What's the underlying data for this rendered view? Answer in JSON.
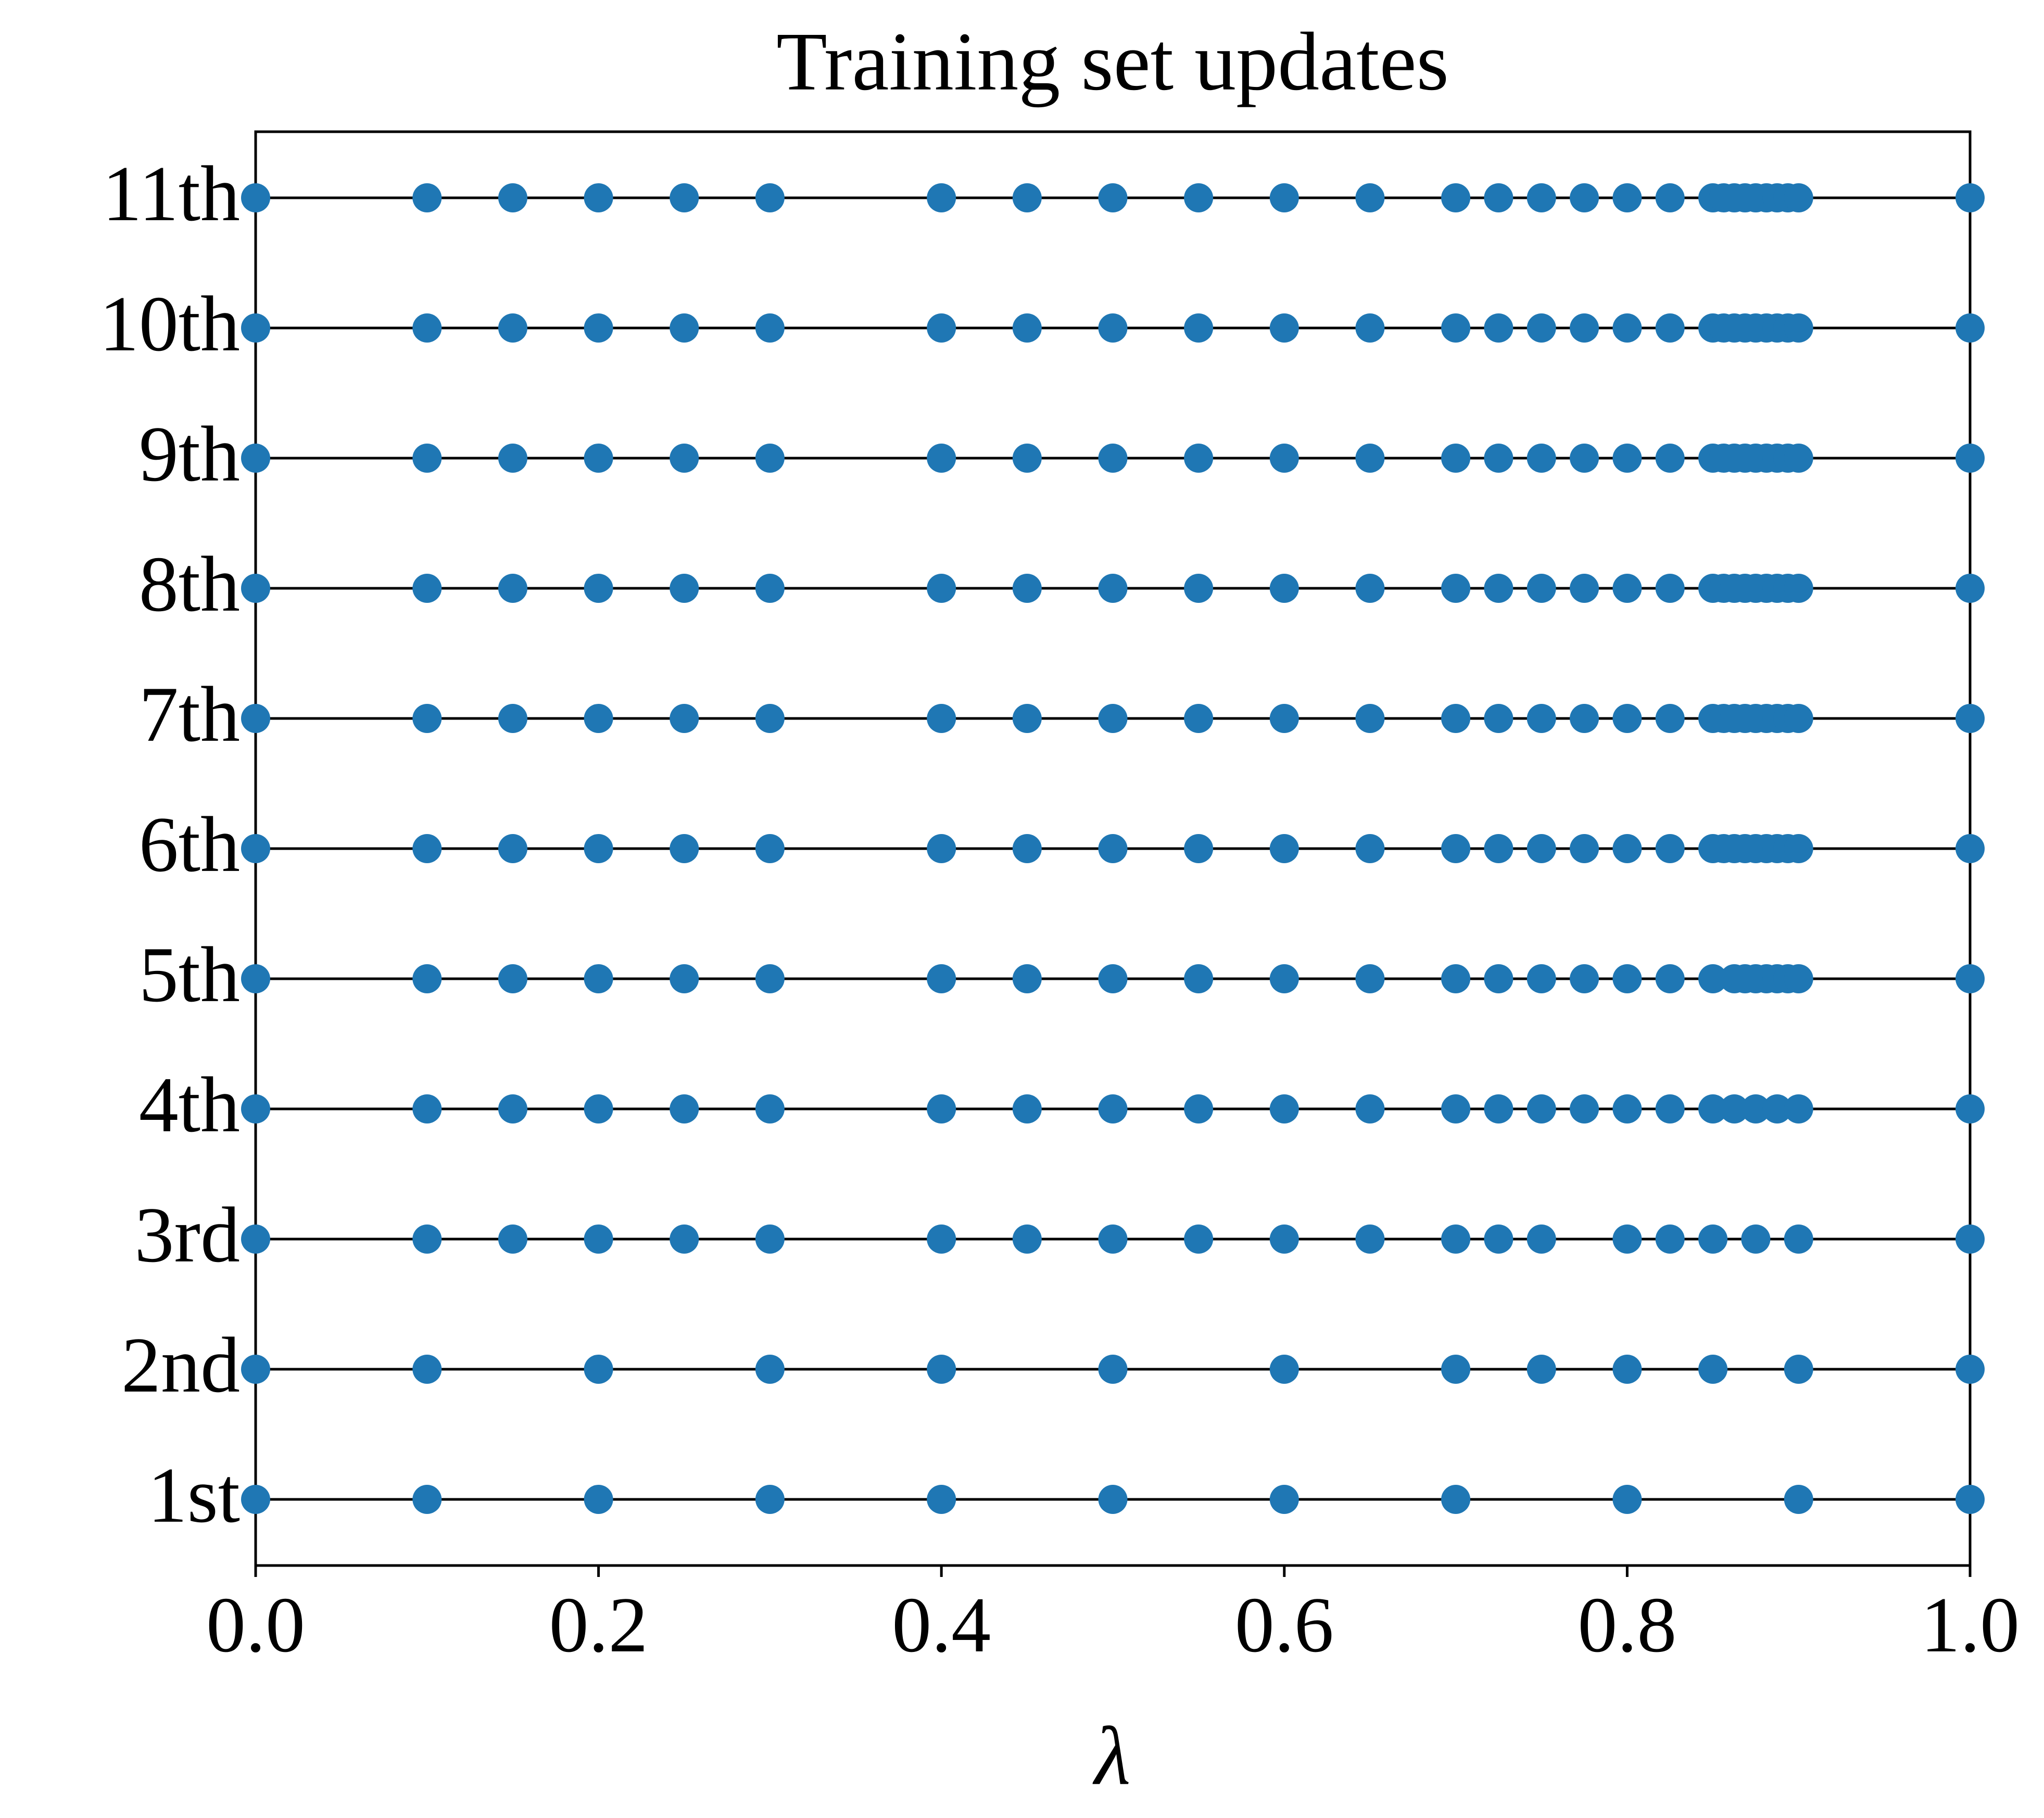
{
  "chart_data": {
    "type": "strip",
    "title": "Training set updates",
    "x_label": "λ",
    "color": "#1f77b4",
    "xlim": [
      0,
      1
    ],
    "xticks": [
      {
        "value": 0,
        "label": "0.0"
      },
      {
        "value": 0.2,
        "label": "0.2"
      },
      {
        "value": 0.4,
        "label": "0.4"
      },
      {
        "value": 0.6,
        "label": "0.6"
      },
      {
        "value": 0.8,
        "label": "0.8"
      },
      {
        "value": 1,
        "label": "1.0"
      }
    ],
    "series": [
      {
        "name": "1st",
        "x": [
          0,
          0.1,
          0.2,
          0.3,
          0.4,
          0.5,
          0.6,
          0.7,
          0.8,
          0.9,
          1
        ]
      },
      {
        "name": "2nd",
        "x": [
          0,
          0.1,
          0.2,
          0.3,
          0.4,
          0.5,
          0.6,
          0.7,
          0.75,
          0.8,
          0.85,
          0.9,
          1
        ]
      },
      {
        "name": "3rd",
        "x": [
          0,
          0.1,
          0.15,
          0.2,
          0.25,
          0.3,
          0.4,
          0.45,
          0.5,
          0.55,
          0.6,
          0.65,
          0.7,
          0.725,
          0.75,
          0.8,
          0.825,
          0.85,
          0.875,
          0.9,
          1
        ]
      },
      {
        "name": "4th",
        "x": [
          0,
          0.1,
          0.15,
          0.2,
          0.25,
          0.3,
          0.4,
          0.45,
          0.5,
          0.55,
          0.6,
          0.65,
          0.7,
          0.725,
          0.75,
          0.775,
          0.8,
          0.825,
          0.85,
          0.8625,
          0.875,
          0.8875,
          0.9,
          1
        ]
      },
      {
        "name": "5th",
        "x": [
          0,
          0.1,
          0.15,
          0.2,
          0.25,
          0.3,
          0.4,
          0.45,
          0.5,
          0.55,
          0.6,
          0.65,
          0.7,
          0.725,
          0.75,
          0.775,
          0.8,
          0.825,
          0.85,
          0.8625,
          0.86875,
          0.875,
          0.88125,
          0.8875,
          0.89375,
          0.9,
          1
        ]
      },
      {
        "name": "6th",
        "x": [
          0,
          0.1,
          0.15,
          0.2,
          0.25,
          0.3,
          0.4,
          0.45,
          0.5,
          0.55,
          0.6,
          0.65,
          0.7,
          0.725,
          0.75,
          0.775,
          0.8,
          0.825,
          0.85,
          0.85625,
          0.8625,
          0.86875,
          0.875,
          0.88125,
          0.8875,
          0.89375,
          0.9,
          1
        ]
      },
      {
        "name": "7th",
        "x": [
          0,
          0.1,
          0.15,
          0.2,
          0.25,
          0.3,
          0.4,
          0.45,
          0.5,
          0.55,
          0.6,
          0.65,
          0.7,
          0.725,
          0.75,
          0.775,
          0.8,
          0.825,
          0.85,
          0.85625,
          0.8625,
          0.86875,
          0.875,
          0.88125,
          0.8875,
          0.89375,
          0.9,
          1
        ]
      },
      {
        "name": "8th",
        "x": [
          0,
          0.1,
          0.15,
          0.2,
          0.25,
          0.3,
          0.4,
          0.45,
          0.5,
          0.55,
          0.6,
          0.65,
          0.7,
          0.725,
          0.75,
          0.775,
          0.8,
          0.825,
          0.85,
          0.85625,
          0.8625,
          0.86875,
          0.875,
          0.88125,
          0.8875,
          0.89375,
          0.9,
          1
        ]
      },
      {
        "name": "9th",
        "x": [
          0,
          0.1,
          0.15,
          0.2,
          0.25,
          0.3,
          0.4,
          0.45,
          0.5,
          0.55,
          0.6,
          0.65,
          0.7,
          0.725,
          0.75,
          0.775,
          0.8,
          0.825,
          0.85,
          0.85625,
          0.8625,
          0.86875,
          0.875,
          0.88125,
          0.8875,
          0.89375,
          0.9,
          1
        ]
      },
      {
        "name": "10th",
        "x": [
          0,
          0.1,
          0.15,
          0.2,
          0.25,
          0.3,
          0.4,
          0.45,
          0.5,
          0.55,
          0.6,
          0.65,
          0.7,
          0.725,
          0.75,
          0.775,
          0.8,
          0.825,
          0.85,
          0.85625,
          0.8625,
          0.86875,
          0.875,
          0.88125,
          0.8875,
          0.89375,
          0.9,
          1
        ]
      },
      {
        "name": "11th",
        "x": [
          0,
          0.1,
          0.15,
          0.2,
          0.25,
          0.3,
          0.4,
          0.45,
          0.5,
          0.55,
          0.6,
          0.65,
          0.7,
          0.725,
          0.75,
          0.775,
          0.8,
          0.825,
          0.85,
          0.85625,
          0.8625,
          0.86875,
          0.875,
          0.88125,
          0.8875,
          0.89375,
          0.9,
          1
        ]
      }
    ]
  }
}
